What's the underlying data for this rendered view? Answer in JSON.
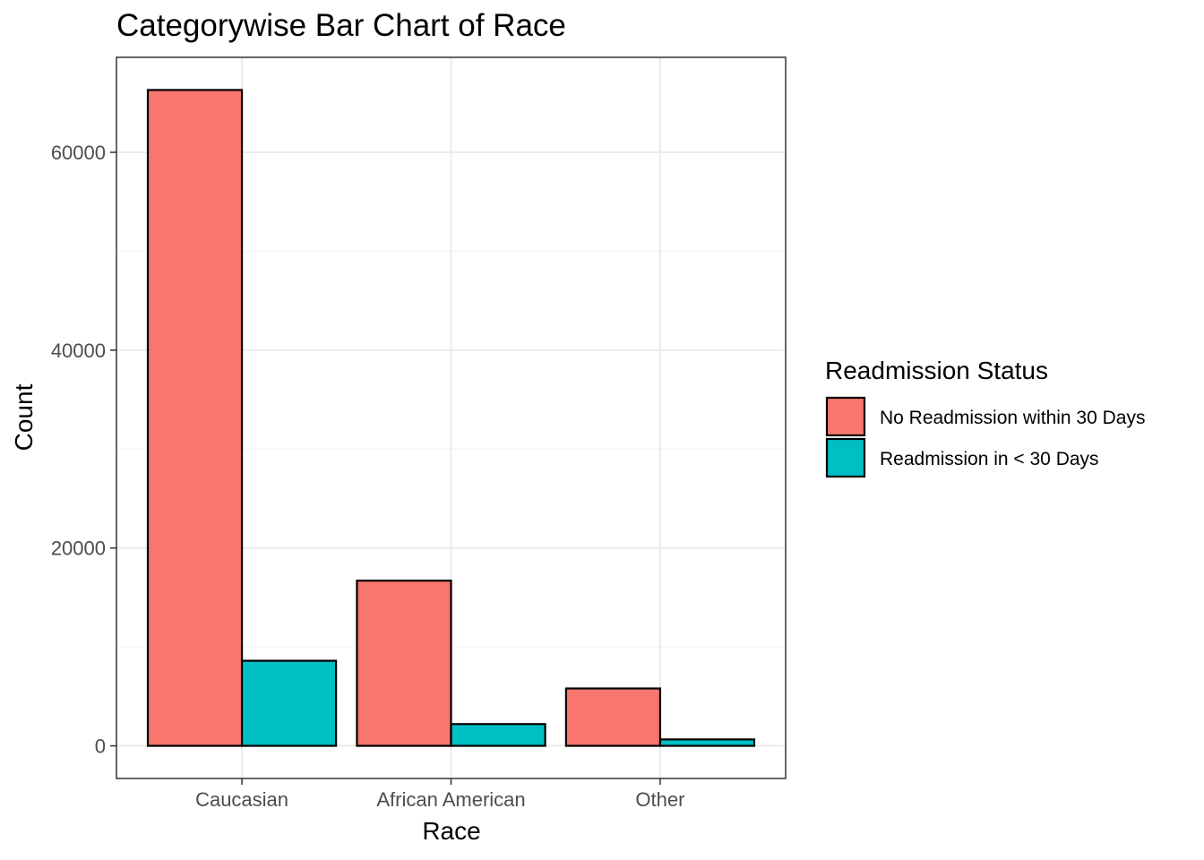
{
  "chart_data": {
    "type": "bar",
    "title": "Categorywise Bar Chart of Race",
    "xlabel": "Race",
    "ylabel": "Count",
    "categories": [
      "Caucasian",
      "African American",
      "Other"
    ],
    "series": [
      {
        "name": "No Readmission within 30 Days",
        "values": [
          66300,
          16700,
          5800
        ],
        "color": "#F8766D"
      },
      {
        "name": "Readmission in < 30 Days",
        "values": [
          8600,
          2200,
          650
        ],
        "color": "#00BFC4"
      }
    ],
    "yticks": [
      0,
      20000,
      40000,
      60000
    ],
    "ylim": [
      -3300,
      69600
    ],
    "grid": true,
    "legend": {
      "title": "Readmission Status",
      "position": "right"
    }
  }
}
